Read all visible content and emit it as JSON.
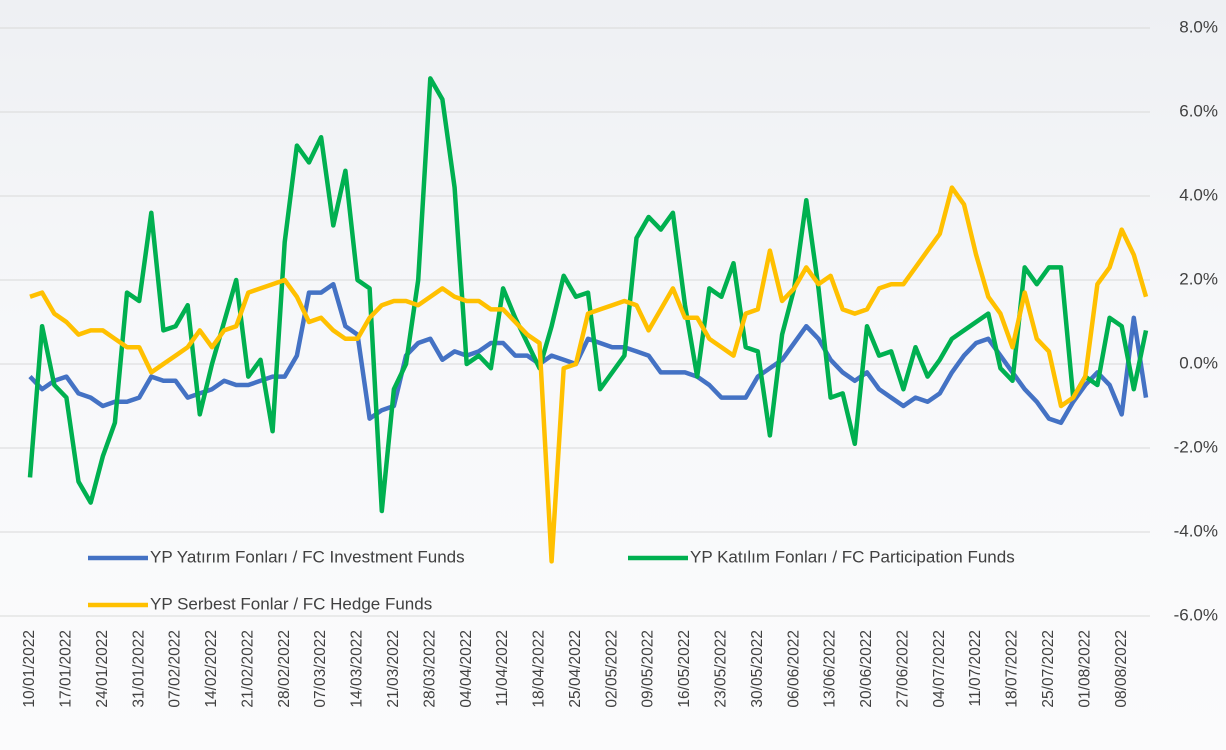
{
  "chart_data": {
    "type": "line",
    "categories": [
      "10/01/2022",
      null,
      null,
      "17/01/2022",
      null,
      null,
      "24/01/2022",
      null,
      null,
      "31/01/2022",
      null,
      null,
      "07/02/2022",
      null,
      null,
      "14/02/2022",
      null,
      null,
      "21/02/2022",
      null,
      null,
      "28/02/2022",
      null,
      null,
      "07/03/2022",
      null,
      null,
      "14/03/2022",
      null,
      null,
      "21/03/2022",
      null,
      null,
      "28/03/2022",
      null,
      null,
      "04/04/2022",
      null,
      null,
      "11/04/2022",
      null,
      null,
      "18/04/2022",
      null,
      null,
      "25/04/2022",
      null,
      null,
      "02/05/2022",
      null,
      null,
      "09/05/2022",
      null,
      null,
      "16/05/2022",
      null,
      null,
      "23/05/2022",
      null,
      null,
      "30/05/2022",
      null,
      null,
      "06/06/2022",
      null,
      null,
      "13/06/2022",
      null,
      null,
      "20/06/2022",
      null,
      null,
      "27/06/2022",
      null,
      null,
      "04/07/2022",
      null,
      null,
      "11/07/2022",
      null,
      null,
      "18/07/2022",
      null,
      null,
      "25/07/2022",
      null,
      null,
      "01/08/2022",
      null,
      null,
      "08/08/2022",
      null,
      null
    ],
    "series": [
      {
        "name": "YP Yatırım Fonları / FC Investment Funds",
        "color": "#4472c4",
        "values": [
          -0.3,
          -0.6,
          -0.4,
          -0.3,
          -0.7,
          -0.8,
          -1.0,
          -0.9,
          -0.9,
          -0.8,
          -0.3,
          -0.4,
          -0.4,
          -0.8,
          -0.7,
          -0.6,
          -0.4,
          -0.5,
          -0.5,
          -0.4,
          -0.3,
          -0.3,
          0.2,
          1.7,
          1.7,
          1.9,
          0.9,
          0.7,
          -1.3,
          -1.1,
          -1.0,
          0.2,
          0.5,
          0.6,
          0.1,
          0.3,
          0.2,
          0.3,
          0.5,
          0.5,
          0.2,
          0.2,
          0.0,
          0.2,
          0.1,
          0.0,
          0.6,
          0.5,
          0.4,
          0.4,
          0.3,
          0.2,
          -0.2,
          -0.2,
          -0.2,
          -0.3,
          -0.5,
          -0.8,
          -0.8,
          -0.8,
          -0.3,
          -0.1,
          0.1,
          0.5,
          0.9,
          0.6,
          0.1,
          -0.2,
          -0.4,
          -0.2,
          -0.6,
          -0.8,
          -1.0,
          -0.8,
          -0.9,
          -0.7,
          -0.2,
          0.2,
          0.5,
          0.6,
          0.2,
          -0.2,
          -0.6,
          -0.9,
          -1.3,
          -1.4,
          -0.9,
          -0.5,
          -0.2,
          -0.5,
          -1.2,
          1.1,
          -0.8
        ]
      },
      {
        "name": "YP Katılım Fonları / FC Participation Funds",
        "color": "#00b050",
        "values": [
          -2.7,
          0.9,
          -0.5,
          -0.8,
          -2.8,
          -3.3,
          -2.2,
          -1.4,
          1.7,
          1.5,
          3.6,
          0.8,
          0.9,
          1.4,
          -1.2,
          0.0,
          1.0,
          2.0,
          -0.3,
          0.1,
          -1.6,
          2.9,
          5.2,
          4.8,
          5.4,
          3.3,
          4.6,
          2.0,
          1.8,
          -3.5,
          -0.6,
          0.0,
          2.0,
          6.8,
          6.3,
          4.2,
          0.0,
          0.2,
          -0.1,
          1.8,
          1.1,
          0.5,
          -0.1,
          0.9,
          2.1,
          1.6,
          1.7,
          -0.6,
          -0.2,
          0.2,
          3.0,
          3.5,
          3.2,
          3.6,
          1.4,
          -0.3,
          1.8,
          1.6,
          2.4,
          0.4,
          0.3,
          -1.7,
          0.7,
          1.8,
          3.9,
          1.8,
          -0.8,
          -0.7,
          -1.9,
          0.9,
          0.2,
          0.3,
          -0.6,
          0.4,
          -0.3,
          0.1,
          0.6,
          0.8,
          1.0,
          1.2,
          -0.1,
          -0.4,
          2.3,
          1.9,
          2.3,
          2.3,
          -0.8,
          -0.3,
          -0.5,
          1.1,
          0.9,
          -0.6,
          0.8
        ]
      },
      {
        "name": "YP Serbest Fonlar / FC Hedge Funds",
        "color": "#ffc000",
        "values": [
          1.6,
          1.7,
          1.2,
          1.0,
          0.7,
          0.8,
          0.8,
          0.6,
          0.4,
          0.4,
          -0.2,
          0.0,
          0.2,
          0.4,
          0.8,
          0.4,
          0.8,
          0.9,
          1.7,
          1.8,
          1.9,
          2.0,
          1.6,
          1.0,
          1.1,
          0.8,
          0.6,
          0.6,
          1.1,
          1.4,
          1.5,
          1.5,
          1.4,
          1.6,
          1.8,
          1.6,
          1.5,
          1.5,
          1.3,
          1.3,
          1.0,
          0.7,
          0.5,
          -4.7,
          -0.1,
          0.0,
          1.2,
          1.3,
          1.4,
          1.5,
          1.4,
          0.8,
          1.3,
          1.8,
          1.1,
          1.1,
          0.6,
          0.4,
          0.2,
          1.2,
          1.3,
          2.7,
          1.5,
          1.8,
          2.3,
          1.9,
          2.1,
          1.3,
          1.2,
          1.3,
          1.8,
          1.9,
          1.9,
          2.3,
          2.7,
          3.1,
          4.2,
          3.8,
          2.6,
          1.6,
          1.2,
          0.4,
          1.7,
          0.6,
          0.3,
          -1.0,
          -0.8,
          -0.3,
          1.9,
          2.3,
          3.2,
          2.6,
          1.6
        ]
      }
    ],
    "ylim": [
      -6,
      8
    ],
    "yticks": [
      {
        "value": -6,
        "label": "-6.0%"
      },
      {
        "value": -4,
        "label": "-4.0%"
      },
      {
        "value": -2,
        "label": "-2.0%"
      },
      {
        "value": 0,
        "label": "0.0%"
      },
      {
        "value": 2,
        "label": "2.0%"
      },
      {
        "value": 4,
        "label": "4.0%"
      },
      {
        "value": 6,
        "label": "6.0%"
      },
      {
        "value": 8,
        "label": "8.0%"
      }
    ],
    "grid": true,
    "legend": "bottom"
  }
}
